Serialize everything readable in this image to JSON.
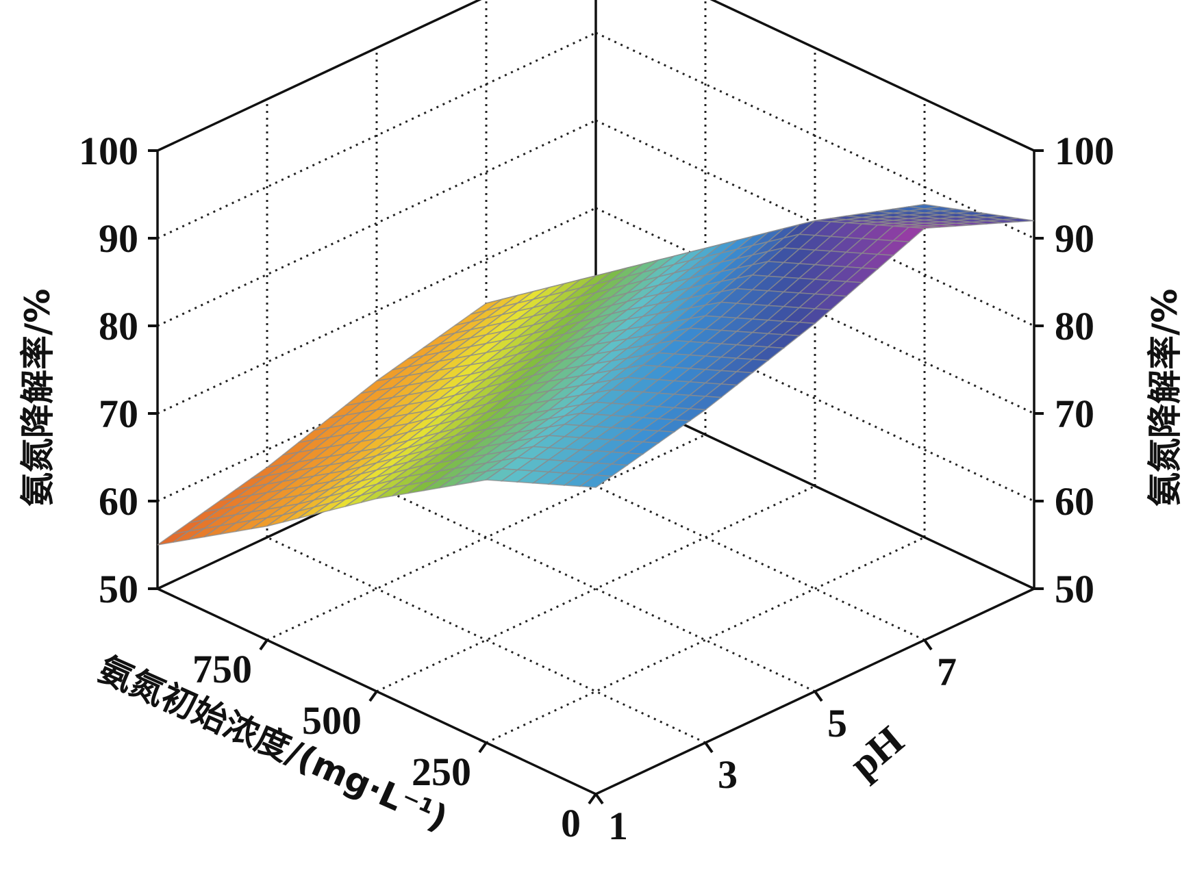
{
  "chart_data": {
    "type": "surface3d",
    "title": "",
    "zlabel": "氨氮降解率/%",
    "xlabel": "氨氮初始浓度/(mg·L⁻¹)",
    "ylabel": "pH",
    "z_ticks": [
      "50",
      "60",
      "70",
      "80",
      "90",
      "100"
    ],
    "x_ticks": [
      "0",
      "250",
      "500",
      "750"
    ],
    "y_ticks": [
      "1",
      "3",
      "5",
      "7"
    ],
    "zlim": [
      50,
      100
    ],
    "xlim": [
      0,
      1000
    ],
    "ylim": [
      1,
      9
    ],
    "grid": true,
    "colormap": "orange-yellow-green-cyan-blue-purple",
    "surface": {
      "x": [
        0,
        250,
        500,
        750,
        1000
      ],
      "y": [
        1,
        3,
        5,
        7,
        9
      ],
      "z": [
        [
          85,
          88,
          92,
          97,
          92
        ],
        [
          80,
          83,
          87,
          92,
          88
        ],
        [
          72,
          75,
          79,
          83,
          80
        ],
        [
          63,
          66,
          70,
          74,
          71
        ],
        [
          55,
          58,
          62,
          65,
          62
        ]
      ]
    }
  }
}
